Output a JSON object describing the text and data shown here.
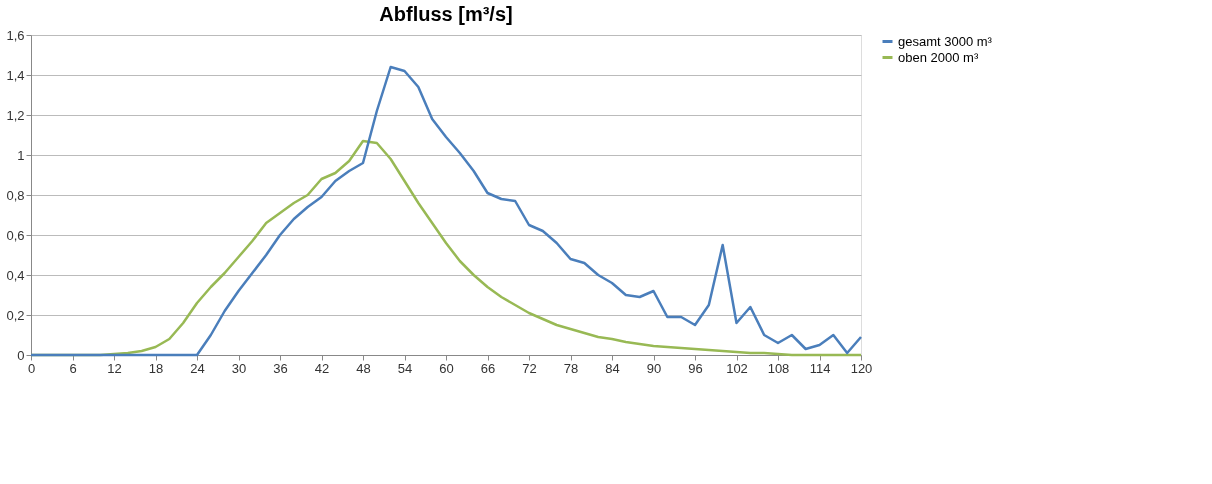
{
  "chart_data": {
    "type": "line",
    "title": "Abfluss [m³/s]",
    "x": [
      0,
      2,
      4,
      6,
      8,
      10,
      12,
      14,
      16,
      18,
      20,
      22,
      24,
      26,
      28,
      30,
      32,
      34,
      36,
      38,
      40,
      42,
      44,
      46,
      48,
      50,
      52,
      54,
      56,
      58,
      60,
      62,
      64,
      66,
      68,
      70,
      72,
      74,
      76,
      78,
      80,
      82,
      84,
      86,
      88,
      90,
      92,
      94,
      96,
      98,
      100,
      102,
      104,
      106,
      108,
      110,
      112,
      114,
      116,
      118,
      120
    ],
    "series": [
      {
        "name": "gesamt 3000 m³",
        "color": "#4a7ebb",
        "values": [
          0,
          0,
          0,
          0,
          0,
          0,
          0,
          0,
          0,
          0,
          0,
          0,
          0,
          0.1,
          0.22,
          0.32,
          0.41,
          0.5,
          0.6,
          0.68,
          0.74,
          0.79,
          0.87,
          0.92,
          0.96,
          1.22,
          1.44,
          1.42,
          1.34,
          1.18,
          1.09,
          1.01,
          0.92,
          0.81,
          0.78,
          0.77,
          0.65,
          0.62,
          0.56,
          0.48,
          0.46,
          0.4,
          0.36,
          0.3,
          0.29,
          0.32,
          0.19,
          0.19,
          0.15,
          0.25,
          0.55,
          0.16,
          0.24,
          0.1,
          0.06,
          0.1,
          0.03,
          0.05,
          0.1,
          0.01,
          0.09
        ]
      },
      {
        "name": "oben 2000 m³",
        "color": "#98b954",
        "values": [
          0,
          0,
          0,
          0,
          0,
          0,
          0.005,
          0.01,
          0.02,
          0.04,
          0.08,
          0.16,
          0.26,
          0.34,
          0.41,
          0.49,
          0.57,
          0.66,
          0.71,
          0.76,
          0.8,
          0.88,
          0.91,
          0.97,
          1.07,
          1.06,
          0.98,
          0.87,
          0.76,
          0.66,
          0.56,
          0.47,
          0.4,
          0.34,
          0.29,
          0.25,
          0.21,
          0.18,
          0.15,
          0.13,
          0.11,
          0.09,
          0.08,
          0.065,
          0.055,
          0.045,
          0.04,
          0.035,
          0.03,
          0.025,
          0.02,
          0.015,
          0.01,
          0.01,
          0.005,
          0,
          0,
          0,
          0,
          0,
          0
        ]
      }
    ],
    "xlim": [
      0,
      120
    ],
    "xticks": [
      0,
      6,
      12,
      18,
      24,
      30,
      36,
      42,
      48,
      54,
      60,
      66,
      72,
      78,
      84,
      90,
      96,
      102,
      108,
      114,
      120
    ],
    "ylim": [
      0,
      1.6
    ],
    "yticks": [
      0,
      {
        "value": 0.2,
        "label": "0,2"
      },
      {
        "value": 0.4,
        "label": "0,4"
      },
      {
        "value": 0.6,
        "label": "0,6"
      },
      {
        "value": 0.8,
        "label": "0,8"
      },
      1,
      {
        "value": 1.2,
        "label": "1,2"
      },
      {
        "value": 1.4,
        "label": "1,4"
      },
      {
        "value": 1.6,
        "label": "1,6"
      }
    ],
    "grid": "y",
    "legend": "right",
    "marker": "none",
    "line_style": "solid"
  }
}
